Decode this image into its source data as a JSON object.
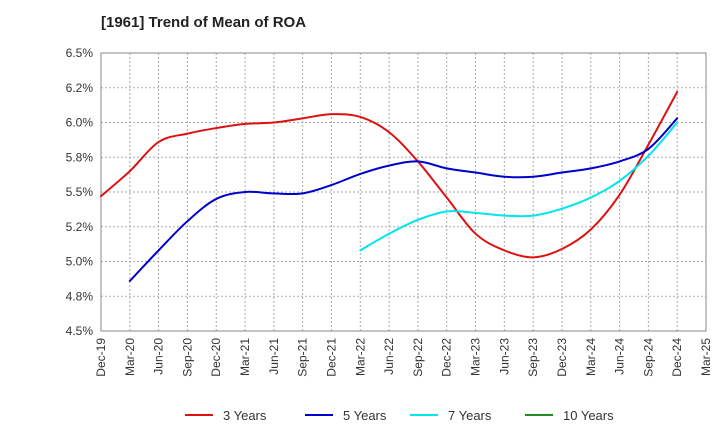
{
  "title": "[1961]  Trend of Mean of ROA",
  "chart_data": {
    "type": "line",
    "title": "[1961]  Trend of Mean of ROA",
    "xlabel": "",
    "ylabel": "",
    "x_ticks": [
      "Dec-19",
      "Mar-20",
      "Jun-20",
      "Sep-20",
      "Dec-20",
      "Mar-21",
      "Jun-21",
      "Sep-21",
      "Dec-21",
      "Mar-22",
      "Jun-22",
      "Sep-22",
      "Dec-22",
      "Mar-23",
      "Jun-23",
      "Sep-23",
      "Dec-23",
      "Mar-24",
      "Jun-24",
      "Sep-24",
      "Dec-24",
      "Mar-25"
    ],
    "y_ticks": [
      "4.5%",
      "4.8%",
      "5.0%",
      "5.2%",
      "5.5%",
      "5.8%",
      "6.0%",
      "6.2%",
      "6.5%"
    ],
    "ylim": [
      4.5,
      6.5
    ],
    "grid": true,
    "legend_position": "bottom",
    "series": [
      {
        "name": "3 Years",
        "color": "#dd1111",
        "points": [
          [
            "Dec-19",
            5.47
          ],
          [
            "Mar-20",
            5.65
          ],
          [
            "Jun-20",
            5.86
          ],
          [
            "Sep-20",
            5.92
          ],
          [
            "Dec-20",
            5.96
          ],
          [
            "Mar-21",
            5.99
          ],
          [
            "Jun-21",
            6.0
          ],
          [
            "Sep-21",
            6.03
          ],
          [
            "Dec-21",
            6.06
          ],
          [
            "Mar-22",
            6.04
          ],
          [
            "Jun-22",
            5.93
          ],
          [
            "Sep-22",
            5.72
          ],
          [
            "Dec-22",
            5.46
          ],
          [
            "Mar-23",
            5.2
          ],
          [
            "Jun-23",
            5.08
          ],
          [
            "Sep-23",
            5.03
          ],
          [
            "Dec-23",
            5.09
          ],
          [
            "Mar-24",
            5.23
          ],
          [
            "Jun-24",
            5.48
          ],
          [
            "Sep-24",
            5.84
          ],
          [
            "Dec-24",
            6.22
          ]
        ]
      },
      {
        "name": "5 Years",
        "color": "#0000cc",
        "points": [
          [
            "Mar-20",
            4.86
          ],
          [
            "Jun-20",
            5.08
          ],
          [
            "Sep-20",
            5.29
          ],
          [
            "Dec-20",
            5.45
          ],
          [
            "Mar-21",
            5.5
          ],
          [
            "Jun-21",
            5.49
          ],
          [
            "Sep-21",
            5.49
          ],
          [
            "Dec-21",
            5.55
          ],
          [
            "Mar-22",
            5.63
          ],
          [
            "Jun-22",
            5.69
          ],
          [
            "Sep-22",
            5.72
          ],
          [
            "Dec-22",
            5.67
          ],
          [
            "Mar-23",
            5.64
          ],
          [
            "Jun-23",
            5.61
          ],
          [
            "Sep-23",
            5.61
          ],
          [
            "Dec-23",
            5.64
          ],
          [
            "Mar-24",
            5.67
          ],
          [
            "Jun-24",
            5.72
          ],
          [
            "Sep-24",
            5.81
          ],
          [
            "Dec-24",
            6.03
          ]
        ]
      },
      {
        "name": "7 Years",
        "color": "#00e5ee",
        "points": [
          [
            "Mar-22",
            5.08
          ],
          [
            "Jun-22",
            5.2
          ],
          [
            "Sep-22",
            5.3
          ],
          [
            "Dec-22",
            5.36
          ],
          [
            "Mar-23",
            5.35
          ],
          [
            "Jun-23",
            5.33
          ],
          [
            "Sep-23",
            5.33
          ],
          [
            "Dec-23",
            5.38
          ],
          [
            "Mar-24",
            5.46
          ],
          [
            "Jun-24",
            5.58
          ],
          [
            "Sep-24",
            5.76
          ],
          [
            "Dec-24",
            6.0
          ]
        ]
      },
      {
        "name": "10 Years",
        "color": "#228b22",
        "points": []
      }
    ]
  }
}
